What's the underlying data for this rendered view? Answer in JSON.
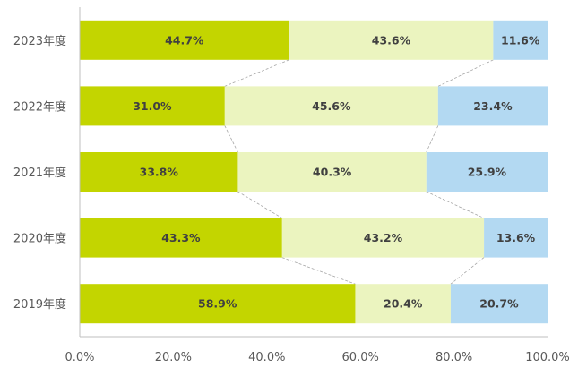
{
  "chart_data": {
    "type": "bar",
    "orientation": "horizontal",
    "stacking": "100%",
    "categories": [
      "2023年度",
      "2022年度",
      "2021年度",
      "2020年度",
      "2019年度"
    ],
    "series": [
      {
        "values": [
          44.7,
          31.0,
          33.8,
          43.3,
          58.9
        ],
        "labels": [
          "44.7%",
          "31.0%",
          "33.8%",
          "43.3%",
          "58.9%"
        ],
        "color": "#c3d500"
      },
      {
        "values": [
          43.6,
          45.6,
          40.3,
          43.2,
          20.4
        ],
        "labels": [
          "43.6%",
          "45.6%",
          "40.3%",
          "43.2%",
          "20.4%"
        ],
        "color": "#ebf4bf"
      },
      {
        "values": [
          11.6,
          23.4,
          25.9,
          13.6,
          20.7
        ],
        "labels": [
          "11.6%",
          "23.4%",
          "25.9%",
          "13.6%",
          "20.7%"
        ],
        "color": "#b3d9f2"
      }
    ],
    "x_ticks": [
      0,
      20,
      40,
      60,
      80,
      100
    ],
    "x_tick_labels": [
      "0.0%",
      "20.0%",
      "40.0%",
      "60.0%",
      "80.0%",
      "100.0%"
    ],
    "xlim": [
      0,
      100
    ],
    "grid": false,
    "legend": "none",
    "series_lines": true
  },
  "colors": {
    "data_label": "#404040",
    "axis_text": "#595959",
    "axis_line": "#bfbfbf",
    "series_line": "#a6a6a6"
  }
}
